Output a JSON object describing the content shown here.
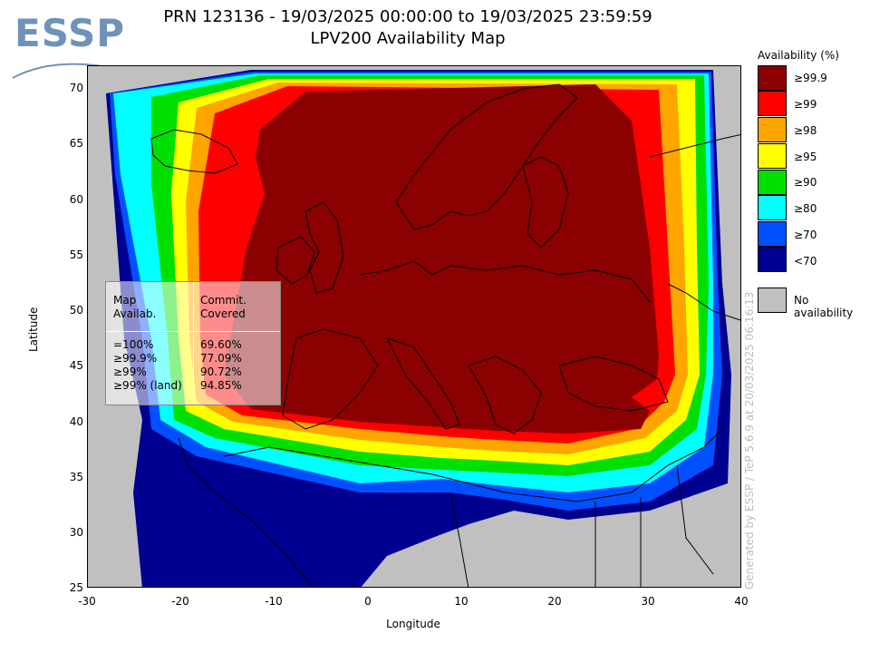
{
  "header": {
    "logo_text": "ESSP",
    "title_line1": "PRN 123136 - 19/03/2025 00:00:00 to 19/03/2025 23:59:59",
    "title_line2": "LPV200 Availability Map"
  },
  "map": {
    "x_ticks": [
      "-30",
      "-20",
      "-10",
      "0",
      "10",
      "20",
      "30",
      "40"
    ],
    "y_ticks": [
      "70",
      "65",
      "60",
      "55",
      "50",
      "45",
      "40",
      "35",
      "30",
      "25"
    ],
    "xlabel": "Longitude",
    "ylabel": "Latitude",
    "xlim": [
      -30,
      40
    ],
    "ylim": [
      25,
      72
    ]
  },
  "legend": {
    "title": "Availability (%)",
    "items": [
      {
        "label": "≥99.9",
        "color": "#8b0000"
      },
      {
        "label": "≥99",
        "color": "#ff0000"
      },
      {
        "label": "≥98",
        "color": "#ffa500"
      },
      {
        "label": "≥95",
        "color": "#ffff00"
      },
      {
        "label": "≥90",
        "color": "#00e000"
      },
      {
        "label": "≥80",
        "color": "#00ffff"
      },
      {
        "label": "≥70",
        "color": "#0050ff"
      },
      {
        "label": "<70",
        "color": "#000090"
      }
    ],
    "no_availability": {
      "label": "No availability",
      "color": "#c0c0c0"
    }
  },
  "stats": {
    "col1_header": "Map\nAvailab.",
    "col2_header": "Commit.\nCovered",
    "rows": [
      {
        "avail": "=100%",
        "covered": "69.60%"
      },
      {
        "avail": "≥99.9%",
        "covered": "77.09%"
      },
      {
        "avail": "≥99%",
        "covered": "90.72%"
      },
      {
        "avail": "≥99% (land)",
        "covered": "94.85%"
      }
    ]
  },
  "footer": {
    "generated": "Generated by ESSP / TeP 5.6.9 at 20/03/2025 06:16:13"
  }
}
